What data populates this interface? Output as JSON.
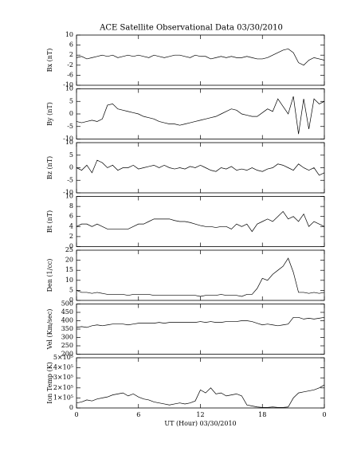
{
  "chart_data": [
    {
      "type": "line",
      "title": "ACE Satellite Observational Data  03/30/2010",
      "ylabel": "Bx (nT)",
      "color": "#000000",
      "xlim": [
        0,
        24
      ],
      "ylim": [
        -10,
        10
      ],
      "yticks": [
        -10,
        -6,
        -2,
        2,
        6,
        10
      ],
      "x": [
        0,
        0.5,
        1,
        1.5,
        2,
        2.5,
        3,
        3.5,
        4,
        4.5,
        5,
        5.5,
        6,
        6.5,
        7,
        7.5,
        8,
        8.5,
        9,
        9.5,
        10,
        10.5,
        11,
        11.5,
        12,
        12.5,
        13,
        13.5,
        14,
        14.5,
        15,
        15.5,
        16,
        16.5,
        17,
        17.5,
        18,
        18.5,
        19,
        19.5,
        20,
        20.5,
        21,
        21.5,
        22,
        22.5,
        23,
        23.5,
        24
      ],
      "values": [
        1,
        1.5,
        0.5,
        1,
        1.5,
        2,
        1.5,
        2,
        1,
        1.5,
        2,
        1.5,
        2,
        1.5,
        1,
        2,
        1.5,
        1,
        1.5,
        2,
        2,
        1.5,
        1,
        2,
        1.5,
        1.5,
        0.5,
        1,
        1.5,
        1,
        1.5,
        1,
        1,
        1.5,
        1,
        0.5,
        0.5,
        1,
        2,
        3,
        4,
        4.5,
        3,
        -1,
        -2,
        0,
        1,
        0.5,
        0
      ]
    },
    {
      "type": "line",
      "ylabel": "By (nT)",
      "color": "#000000",
      "xlim": [
        0,
        24
      ],
      "ylim": [
        -10,
        10
      ],
      "yticks": [
        -10,
        -5,
        0,
        5,
        10
      ],
      "x": [
        0,
        0.5,
        1,
        1.5,
        2,
        2.5,
        3,
        3.5,
        4,
        4.5,
        5,
        5.5,
        6,
        6.5,
        7,
        7.5,
        8,
        8.5,
        9,
        9.5,
        10,
        10.5,
        11,
        11.5,
        12,
        12.5,
        13,
        13.5,
        14,
        14.5,
        15,
        15.5,
        16,
        16.5,
        17,
        17.5,
        18,
        18.5,
        19,
        19.5,
        20,
        20.5,
        21,
        21.5,
        22,
        22.5,
        23,
        23.5,
        24
      ],
      "values": [
        -3,
        -3.5,
        -3,
        -2.5,
        -3,
        -2,
        3.5,
        4,
        2,
        1.5,
        1,
        0.5,
        0,
        -1,
        -1.5,
        -2,
        -3,
        -3.5,
        -4,
        -4,
        -4.5,
        -4,
        -3.5,
        -3,
        -2.5,
        -2,
        -1.5,
        -1,
        0,
        1,
        2,
        1.5,
        0,
        -0.5,
        -1,
        -1,
        0.5,
        2,
        1,
        6,
        3,
        0,
        7,
        -8,
        6,
        -6,
        6,
        4,
        5
      ]
    },
    {
      "type": "line",
      "ylabel": "Bz (nT)",
      "color": "#000000",
      "xlim": [
        0,
        24
      ],
      "ylim": [
        -10,
        10
      ],
      "yticks": [
        -10,
        -5,
        0,
        5,
        10
      ],
      "x": [
        0,
        0.5,
        1,
        1.5,
        2,
        2.5,
        3,
        3.5,
        4,
        4.5,
        5,
        5.5,
        6,
        6.5,
        7,
        7.5,
        8,
        8.5,
        9,
        9.5,
        10,
        10.5,
        11,
        11.5,
        12,
        12.5,
        13,
        13.5,
        14,
        14.5,
        15,
        15.5,
        16,
        16.5,
        17,
        17.5,
        18,
        18.5,
        19,
        19.5,
        20,
        20.5,
        21,
        21.5,
        22,
        22.5,
        23,
        23.5,
        24
      ],
      "values": [
        0,
        -1,
        1,
        -2,
        3,
        2,
        0,
        1,
        -1,
        0,
        0,
        1,
        -0.5,
        0,
        0.5,
        1,
        0,
        1,
        0,
        -0.5,
        0,
        -0.5,
        0.5,
        0,
        1,
        0,
        -1,
        -1.5,
        0,
        -0.5,
        0.5,
        -1,
        -0.5,
        -1,
        0,
        -1,
        -1.5,
        -0.5,
        0,
        1.5,
        1,
        0,
        -1,
        1.5,
        0,
        -1,
        0,
        -3,
        -2
      ]
    },
    {
      "type": "line",
      "ylabel": "Bt (nT)",
      "color": "#000000",
      "xlim": [
        0,
        24
      ],
      "ylim": [
        0,
        10
      ],
      "yticks": [
        0,
        2,
        4,
        6,
        8,
        10
      ],
      "x": [
        0,
        0.5,
        1,
        1.5,
        2,
        2.5,
        3,
        3.5,
        4,
        4.5,
        5,
        5.5,
        6,
        6.5,
        7,
        7.5,
        8,
        8.5,
        9,
        9.5,
        10,
        10.5,
        11,
        11.5,
        12,
        12.5,
        13,
        13.5,
        14,
        14.5,
        15,
        15.5,
        16,
        16.5,
        17,
        17.5,
        18,
        18.5,
        19,
        19.5,
        20,
        20.5,
        21,
        21.5,
        22,
        22.5,
        23,
        23.5,
        24
      ],
      "values": [
        4,
        4.5,
        4.5,
        4,
        4.5,
        4,
        3.5,
        3.5,
        3.5,
        3.5,
        3.5,
        4,
        4.5,
        4.5,
        5,
        5.5,
        5.5,
        5.5,
        5.5,
        5.2,
        5,
        5,
        4.8,
        4.5,
        4.2,
        4,
        4,
        3.8,
        4,
        4,
        3.5,
        4.5,
        4,
        4.5,
        3,
        4.5,
        5,
        5.5,
        5,
        6,
        7,
        5.5,
        6,
        5,
        6.5,
        4,
        5,
        4.5,
        4
      ]
    },
    {
      "type": "line",
      "ylabel": "Den (1/cc)",
      "color": "#000000",
      "xlim": [
        0,
        24
      ],
      "ylim": [
        0,
        25
      ],
      "yticks": [
        0,
        5,
        10,
        15,
        20,
        25
      ],
      "x": [
        0,
        0.5,
        1,
        1.5,
        2,
        2.5,
        3,
        3.5,
        4,
        4.5,
        5,
        5.5,
        6,
        6.5,
        7,
        7.5,
        8,
        8.5,
        9,
        9.5,
        10,
        10.5,
        11,
        11.5,
        12,
        12.5,
        13,
        13.5,
        14,
        14.5,
        15,
        15.5,
        16,
        16.5,
        17,
        17.5,
        18,
        18.5,
        19,
        19.5,
        20,
        20.5,
        21,
        21.5,
        22,
        22.5,
        23,
        23.5,
        24
      ],
      "values": [
        5,
        4,
        4,
        3.5,
        4,
        3.5,
        3,
        3,
        3,
        3,
        2.5,
        3,
        3,
        3,
        3,
        2.5,
        2.5,
        2.5,
        2.5,
        2.5,
        2.5,
        2.5,
        2.5,
        2.5,
        2,
        2.5,
        2.5,
        2.5,
        3,
        2.5,
        2.5,
        2.5,
        2,
        3,
        3,
        6,
        11,
        10,
        13,
        15,
        17,
        21,
        14,
        4,
        4,
        3.5,
        4,
        3.5,
        4
      ]
    },
    {
      "type": "line",
      "ylabel": "Vel (Km/sec)",
      "color": "#000000",
      "xlim": [
        0,
        24
      ],
      "ylim": [
        200,
        500
      ],
      "yticks": [
        200,
        250,
        300,
        350,
        400,
        450,
        500
      ],
      "x": [
        0,
        0.5,
        1,
        1.5,
        2,
        2.5,
        3,
        3.5,
        4,
        4.5,
        5,
        5.5,
        6,
        6.5,
        7,
        7.5,
        8,
        8.5,
        9,
        9.5,
        10,
        10.5,
        11,
        11.5,
        12,
        12.5,
        13,
        13.5,
        14,
        14.5,
        15,
        15.5,
        16,
        16.5,
        17,
        17.5,
        18,
        18.5,
        19,
        19.5,
        20,
        20.5,
        21,
        21.5,
        22,
        22.5,
        23,
        23.5,
        24
      ],
      "values": [
        360,
        365,
        360,
        370,
        375,
        370,
        375,
        380,
        380,
        380,
        375,
        380,
        385,
        385,
        385,
        385,
        390,
        385,
        390,
        390,
        390,
        390,
        390,
        390,
        395,
        390,
        395,
        390,
        390,
        395,
        395,
        395,
        400,
        400,
        395,
        385,
        375,
        380,
        375,
        370,
        375,
        380,
        420,
        420,
        410,
        415,
        410,
        415,
        420
      ]
    },
    {
      "type": "line",
      "ylabel": "Ion Temp (K)",
      "xlabel": "UT (Hour)  03/30/2010",
      "color": "#000000",
      "xlim": [
        0,
        24
      ],
      "xticks": [
        0,
        6,
        12,
        18,
        {
          "value": 24,
          "label": "0"
        }
      ],
      "ylim": [
        0,
        500000
      ],
      "yticks": [
        0,
        {
          "value": 100000,
          "label": "1×10⁵"
        },
        {
          "value": 200000,
          "label": "2×10⁵"
        },
        {
          "value": 300000,
          "label": "3×10⁵"
        },
        {
          "value": 400000,
          "label": "4×10⁵"
        },
        {
          "value": 500000,
          "label": "5×10⁵"
        }
      ],
      "x": [
        0,
        0.5,
        1,
        1.5,
        2,
        2.5,
        3,
        3.5,
        4,
        4.5,
        5,
        5.5,
        6,
        6.5,
        7,
        7.5,
        8,
        8.5,
        9,
        9.5,
        10,
        10.5,
        11,
        11.5,
        12,
        12.5,
        13,
        13.5,
        14,
        14.5,
        15,
        15.5,
        16,
        16.5,
        17,
        17.5,
        18,
        18.5,
        19,
        19.5,
        20,
        20.5,
        21,
        21.5,
        22,
        22.5,
        23,
        23.5,
        24
      ],
      "values": [
        50000,
        60000,
        80000,
        70000,
        90000,
        100000,
        110000,
        130000,
        140000,
        150000,
        120000,
        140000,
        110000,
        90000,
        80000,
        60000,
        50000,
        40000,
        30000,
        40000,
        50000,
        40000,
        50000,
        70000,
        180000,
        150000,
        200000,
        140000,
        150000,
        120000,
        130000,
        140000,
        120000,
        30000,
        20000,
        10000,
        5000,
        5000,
        10000,
        5000,
        5000,
        10000,
        100000,
        150000,
        160000,
        170000,
        180000,
        200000,
        230000
      ]
    }
  ]
}
